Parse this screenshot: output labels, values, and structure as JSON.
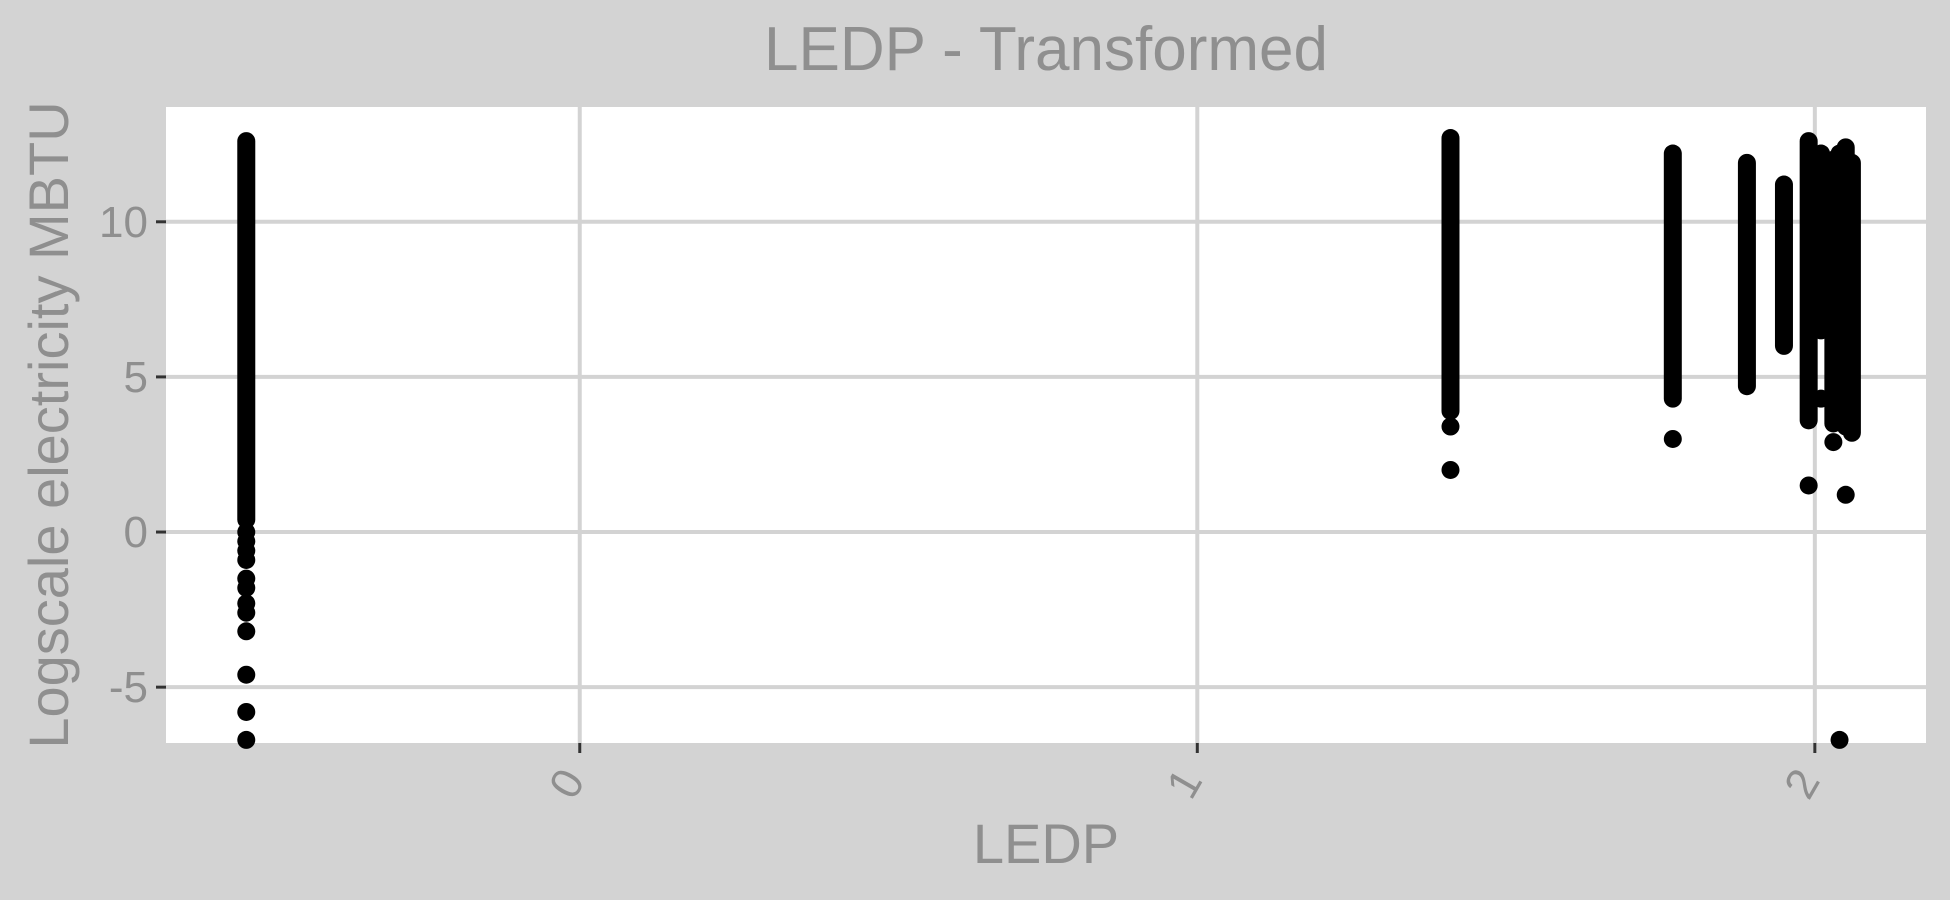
{
  "chart_data": {
    "type": "scatter",
    "title": "LEDP - Transformed",
    "xlabel": "LEDP",
    "ylabel": "Logscale electricity MBTU",
    "xlim": [
      -0.67,
      2.18
    ],
    "ylim": [
      -6.8,
      13.7
    ],
    "xticks": [
      0,
      1,
      2
    ],
    "xtick_labels": [
      "0",
      "1",
      "2"
    ],
    "yticks": [
      -5,
      0,
      5,
      10
    ],
    "ytick_labels": [
      "-5",
      "0",
      "5",
      "10"
    ],
    "grid": true,
    "colors": {
      "background": "#d3d3d3",
      "panel": "#ffffff",
      "grid": "#d3d3d3",
      "points": "#000000",
      "text": "#8f8f8f"
    },
    "columns": [
      {
        "x": -0.54,
        "y_min": 0.4,
        "y_max": 12.6,
        "outliers": [
          0.0,
          -0.3,
          -0.6,
          -0.9,
          -1.5,
          -1.8,
          -2.3,
          -2.6,
          -3.2,
          -4.6,
          -5.8,
          -6.7
        ]
      },
      {
        "x": 1.41,
        "y_min": 3.9,
        "y_max": 12.7,
        "outliers": [
          3.4,
          2.0
        ]
      },
      {
        "x": 1.77,
        "y_min": 4.3,
        "y_max": 12.2,
        "outliers": [
          3.0
        ]
      },
      {
        "x": 1.89,
        "y_min": 4.7,
        "y_max": 11.9,
        "outliers": []
      },
      {
        "x": 1.95,
        "y_min": 6.0,
        "y_max": 11.2,
        "outliers": []
      },
      {
        "x": 1.99,
        "y_min": 3.6,
        "y_max": 12.6,
        "outliers": [
          1.5
        ]
      },
      {
        "x": 2.01,
        "y_min": 6.5,
        "y_max": 12.2,
        "outliers": [
          4.3
        ]
      },
      {
        "x": 2.03,
        "y_min": 3.5,
        "y_max": 12.0,
        "outliers": [
          2.9
        ]
      },
      {
        "x": 2.04,
        "y_min": 6.3,
        "y_max": 12.2,
        "outliers": [
          -6.7
        ]
      },
      {
        "x": 2.05,
        "y_min": 3.4,
        "y_max": 12.4,
        "outliers": [
          1.2
        ]
      },
      {
        "x": 2.06,
        "y_min": 3.2,
        "y_max": 11.9,
        "outliers": []
      }
    ]
  }
}
